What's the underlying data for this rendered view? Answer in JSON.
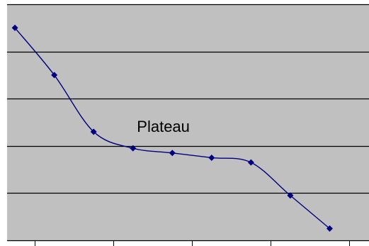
{
  "chart_data": {
    "type": "line",
    "x": [
      1,
      2,
      3,
      4,
      5,
      6,
      7,
      8,
      9
    ],
    "series": [
      {
        "values": [
          4.5,
          3.5,
          2.3,
          1.95,
          1.85,
          1.75,
          1.65,
          0.95,
          0.25
        ]
      }
    ],
    "ylim": [
      0,
      5
    ],
    "xlim": [
      0.8,
      10
    ],
    "grid": true,
    "annotations": [
      {
        "text": "Plateau",
        "x": 4.1,
        "y": 2.3
      }
    ],
    "colors": {
      "plot_background": "#c0c0c0",
      "series_line": "#000080",
      "gridline": "#000000",
      "page_background": "#ffffff"
    }
  }
}
